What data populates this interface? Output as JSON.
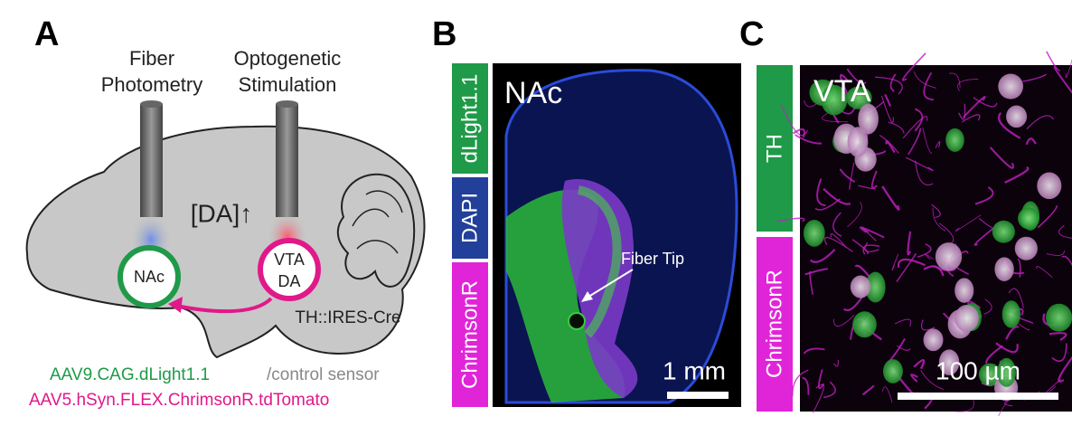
{
  "panel_a": {
    "label": "A",
    "fiber_photometry": [
      "Fiber",
      "Photometry"
    ],
    "optogenetic_stimulation": [
      "Optogenetic",
      "Stimulation"
    ],
    "dopamine_label": "[DA]↑",
    "nac": "NAc",
    "vta": [
      "VTA",
      "DA"
    ],
    "mouse_line": "TH::IRES-Cre",
    "virus_sensor": "AAV9.CAG.dLight1.1",
    "virus_control": "/control sensor",
    "virus_opsin": "AAV5.hSyn.FLEX.ChrimsonR.tdTomato"
  },
  "panel_b": {
    "label": "B",
    "channels": [
      "dLight1.1",
      "DAPI",
      "ChrimsonR"
    ],
    "region": "NAc",
    "annotation": "Fiber Tip",
    "scale_bar": "1 mm"
  },
  "panel_c": {
    "label": "C",
    "channels": [
      "TH",
      "ChrimsonR"
    ],
    "region": "VTA",
    "scale_bar": "100 µm"
  }
}
